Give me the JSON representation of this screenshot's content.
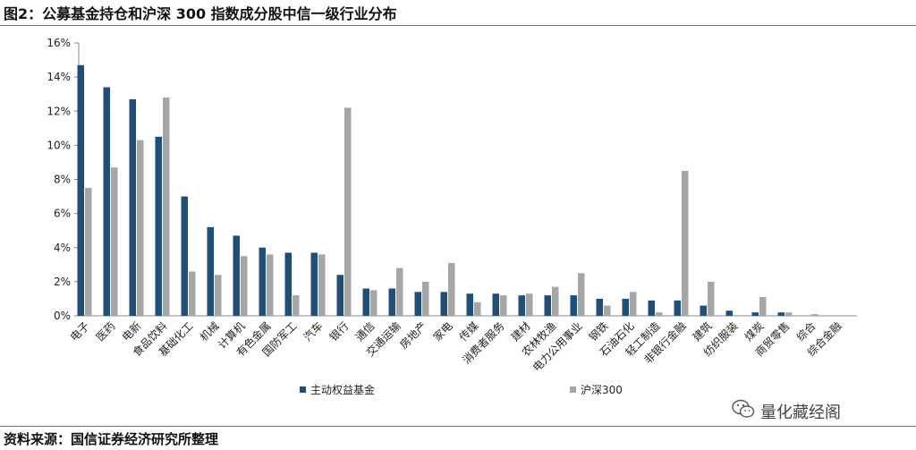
{
  "title": "图2：公募基金持仓和沪深 300 指数成分股中信一级行业分布",
  "source": "资料来源：国信证券经济研究所整理",
  "watermark": "量化藏经阁",
  "watermark_icon": "wechat-icon",
  "colors": {
    "series1": "#1F4E79",
    "series2": "#A6A6A6",
    "axis": "#888888"
  },
  "chart_data": {
    "type": "bar",
    "title": "",
    "xlabel": "",
    "ylabel": "",
    "ylim": [
      0,
      16
    ],
    "yticks": [
      "0%",
      "2%",
      "4%",
      "6%",
      "8%",
      "10%",
      "12%",
      "14%",
      "16%"
    ],
    "grid": false,
    "legend_position": "bottom",
    "categories": [
      "电子",
      "医药",
      "电新",
      "食品饮料",
      "基础化工",
      "机械",
      "计算机",
      "有色金属",
      "国防军工",
      "汽车",
      "银行",
      "通信",
      "交通运输",
      "房地产",
      "家电",
      "传媒",
      "消费者服务",
      "建材",
      "农林牧渔",
      "电力公用事业",
      "钢铁",
      "石油石化",
      "轻工制造",
      "非银行金融",
      "建筑",
      "纺织服装",
      "煤炭",
      "商贸零售",
      "综合",
      "综合金融"
    ],
    "series": [
      {
        "name": "主动权益基金",
        "values": [
          14.7,
          13.4,
          12.7,
          10.5,
          7.0,
          5.2,
          4.7,
          4.0,
          3.7,
          3.7,
          2.4,
          1.6,
          1.6,
          1.4,
          1.4,
          1.3,
          1.3,
          1.2,
          1.2,
          1.2,
          1.0,
          1.0,
          0.9,
          0.9,
          0.6,
          0.3,
          0.2,
          0.2,
          0.0,
          0.0
        ]
      },
      {
        "name": "沪深300",
        "values": [
          7.5,
          8.7,
          10.3,
          12.8,
          2.6,
          2.4,
          3.5,
          3.6,
          1.2,
          3.6,
          12.2,
          1.5,
          2.8,
          2.0,
          3.1,
          0.8,
          1.2,
          1.3,
          1.7,
          2.5,
          0.6,
          1.4,
          0.2,
          8.5,
          2.0,
          0.0,
          1.1,
          0.2,
          0.1,
          0.0
        ]
      }
    ]
  }
}
